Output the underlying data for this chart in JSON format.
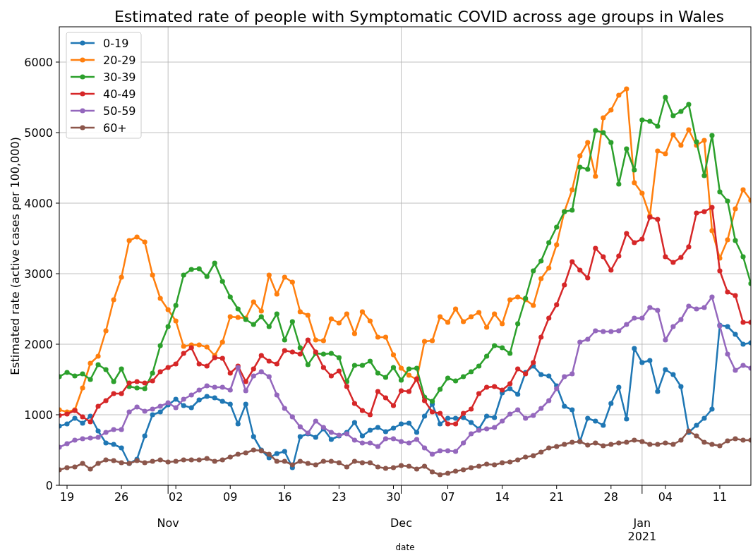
{
  "chart_data": {
    "type": "line",
    "title": "Estimated rate of people with Symptomatic COVID across age groups in Wales",
    "xlabel": "date",
    "ylabel": "Estimated rate (active cases per 100,000)",
    "x": [
      "2020-10-18",
      "2020-10-19",
      "2020-10-20",
      "2020-10-21",
      "2020-10-22",
      "2020-10-23",
      "2020-10-24",
      "2020-10-25",
      "2020-10-26",
      "2020-10-27",
      "2020-10-28",
      "2020-10-29",
      "2020-10-30",
      "2020-10-31",
      "2020-11-01",
      "2020-11-02",
      "2020-11-03",
      "2020-11-04",
      "2020-11-05",
      "2020-11-06",
      "2020-11-07",
      "2020-11-08",
      "2020-11-09",
      "2020-11-10",
      "2020-11-11",
      "2020-11-12",
      "2020-11-13",
      "2020-11-14",
      "2020-11-15",
      "2020-11-16",
      "2020-11-17",
      "2020-11-18",
      "2020-11-19",
      "2020-11-20",
      "2020-11-21",
      "2020-11-22",
      "2020-11-23",
      "2020-11-24",
      "2020-11-25",
      "2020-11-26",
      "2020-11-27",
      "2020-11-28",
      "2020-11-29",
      "2020-11-30",
      "2020-12-01",
      "2020-12-02",
      "2020-12-03",
      "2020-12-04",
      "2020-12-05",
      "2020-12-06",
      "2020-12-07",
      "2020-12-08",
      "2020-12-09",
      "2020-12-10",
      "2020-12-11",
      "2020-12-12",
      "2020-12-13",
      "2020-12-14",
      "2020-12-15",
      "2020-12-16",
      "2020-12-17",
      "2020-12-18",
      "2020-12-19",
      "2020-12-20",
      "2020-12-21",
      "2020-12-22",
      "2020-12-23",
      "2020-12-24",
      "2020-12-25",
      "2020-12-26",
      "2020-12-27",
      "2020-12-28",
      "2020-12-29",
      "2020-12-30",
      "2020-12-31",
      "2021-01-01",
      "2021-01-02",
      "2021-01-03",
      "2021-01-04",
      "2021-01-05",
      "2021-01-06",
      "2021-01-07",
      "2021-01-08",
      "2021-01-09",
      "2021-01-10",
      "2021-01-11",
      "2021-01-12",
      "2021-01-13",
      "2021-01-14",
      "2021-01-15"
    ],
    "series": [
      {
        "name": "0-19",
        "color": "#1f77b4",
        "values": [
          840,
          870,
          950,
          880,
          980,
          770,
          600,
          580,
          530,
          310,
          370,
          700,
          1000,
          1040,
          1140,
          1220,
          1130,
          1100,
          1210,
          1260,
          1240,
          1190,
          1150,
          870,
          1150,
          690,
          500,
          390,
          450,
          480,
          250,
          690,
          730,
          680,
          800,
          650,
          700,
          750,
          890,
          700,
          780,
          820,
          760,
          810,
          870,
          880,
          750,
          980,
          1150,
          870,
          950,
          950,
          960,
          890,
          800,
          980,
          960,
          1310,
          1370,
          1290,
          1600,
          1690,
          1570,
          1550,
          1410,
          1120,
          1070,
          620,
          950,
          910,
          850,
          1160,
          1390,
          940,
          1940,
          1740,
          1770,
          1330,
          1640,
          1570,
          1400,
          750,
          850,
          950,
          1080,
          2270,
          2250,
          2140,
          2000,
          2020
        ]
      },
      {
        "name": "20-29",
        "color": "#ff7f0e",
        "values": [
          1070,
          1040,
          1070,
          1380,
          1730,
          1830,
          2190,
          2630,
          2950,
          3470,
          3520,
          3450,
          2980,
          2650,
          2490,
          2330,
          1970,
          1990,
          1990,
          1960,
          1840,
          2030,
          2390,
          2380,
          2370,
          2600,
          2470,
          2980,
          2710,
          2950,
          2880,
          2460,
          2410,
          2060,
          2050,
          2360,
          2300,
          2430,
          2150,
          2460,
          2330,
          2100,
          2100,
          1850,
          1660,
          1560,
          1500,
          2040,
          2050,
          2390,
          2310,
          2500,
          2320,
          2390,
          2450,
          2240,
          2430,
          2290,
          2630,
          2670,
          2630,
          2550,
          2930,
          3080,
          3410,
          3880,
          4190,
          4670,
          4860,
          4380,
          5210,
          5320,
          5530,
          5620,
          4290,
          4140,
          3820,
          4740,
          4700,
          4970,
          4820,
          5040,
          4820,
          4890,
          3610,
          3220,
          3480,
          3920,
          4190,
          4040
        ]
      },
      {
        "name": "30-39",
        "color": "#2ca02c",
        "values": [
          1540,
          1600,
          1550,
          1580,
          1500,
          1710,
          1640,
          1470,
          1650,
          1400,
          1380,
          1370,
          1590,
          1980,
          2250,
          2550,
          2980,
          3060,
          3070,
          2960,
          3150,
          2890,
          2670,
          2500,
          2350,
          2280,
          2390,
          2250,
          2430,
          2060,
          2320,
          1950,
          1710,
          1870,
          1860,
          1870,
          1810,
          1470,
          1700,
          1700,
          1760,
          1590,
          1530,
          1670,
          1490,
          1650,
          1660,
          1250,
          1190,
          1360,
          1520,
          1480,
          1540,
          1610,
          1690,
          1830,
          1980,
          1950,
          1870,
          2290,
          2650,
          3040,
          3180,
          3440,
          3660,
          3880,
          3900,
          4510,
          4480,
          5030,
          5000,
          4860,
          4270,
          4770,
          4470,
          5180,
          5160,
          5090,
          5500,
          5240,
          5300,
          5400,
          4870,
          4390,
          4960,
          4160,
          4030,
          3470,
          3240,
          2860
        ]
      },
      {
        "name": "40-49",
        "color": "#d62728",
        "values": [
          990,
          1010,
          1060,
          970,
          900,
          1120,
          1200,
          1300,
          1300,
          1450,
          1470,
          1450,
          1480,
          1610,
          1670,
          1720,
          1870,
          1950,
          1720,
          1690,
          1810,
          1800,
          1590,
          1690,
          1470,
          1650,
          1840,
          1760,
          1720,
          1910,
          1890,
          1860,
          2060,
          1890,
          1670,
          1550,
          1620,
          1400,
          1160,
          1060,
          1000,
          1330,
          1240,
          1130,
          1340,
          1330,
          1510,
          1200,
          1040,
          1020,
          870,
          870,
          1020,
          1080,
          1300,
          1390,
          1400,
          1350,
          1440,
          1650,
          1580,
          1740,
          2100,
          2370,
          2560,
          2840,
          3170,
          3050,
          2940,
          3360,
          3240,
          3050,
          3250,
          3570,
          3440,
          3490,
          3800,
          3770,
          3240,
          3160,
          3230,
          3380,
          3860,
          3880,
          3940,
          3040,
          2740,
          2690,
          2310,
          2310
        ]
      },
      {
        "name": "50-59",
        "color": "#9467bd",
        "values": [
          540,
          590,
          640,
          660,
          670,
          680,
          750,
          790,
          790,
          1040,
          1110,
          1050,
          1080,
          1120,
          1170,
          1100,
          1220,
          1280,
          1350,
          1410,
          1390,
          1390,
          1350,
          1670,
          1340,
          1550,
          1610,
          1540,
          1280,
          1090,
          970,
          830,
          740,
          910,
          820,
          750,
          710,
          730,
          640,
          600,
          600,
          550,
          660,
          660,
          620,
          600,
          650,
          530,
          440,
          490,
          490,
          480,
          600,
          730,
          780,
          800,
          820,
          910,
          1010,
          1070,
          950,
          990,
          1090,
          1200,
          1370,
          1540,
          1580,
          2030,
          2070,
          2190,
          2180,
          2180,
          2190,
          2280,
          2370,
          2370,
          2520,
          2480,
          2060,
          2250,
          2350,
          2540,
          2500,
          2520,
          2670,
          2260,
          1860,
          1630,
          1700,
          1660
        ]
      },
      {
        "name": "60+",
        "color": "#8c564b",
        "values": [
          220,
          250,
          260,
          310,
          230,
          310,
          360,
          350,
          320,
          310,
          350,
          320,
          340,
          360,
          330,
          340,
          360,
          360,
          360,
          380,
          340,
          360,
          400,
          440,
          460,
          500,
          490,
          440,
          340,
          340,
          290,
          340,
          310,
          290,
          340,
          340,
          320,
          260,
          340,
          320,
          320,
          260,
          240,
          250,
          280,
          270,
          230,
          270,
          190,
          150,
          170,
          200,
          220,
          250,
          270,
          300,
          290,
          320,
          330,
          360,
          400,
          420,
          470,
          530,
          550,
          580,
          610,
          620,
          570,
          600,
          560,
          580,
          600,
          610,
          640,
          620,
          580,
          580,
          600,
          580,
          640,
          770,
          700,
          610,
          580,
          560,
          630,
          660,
          640,
          640
        ]
      }
    ],
    "xlim": [
      "2020-10-18",
      "2021-01-15"
    ],
    "xticks": [
      {
        "value": "2020-10-19",
        "label": "19"
      },
      {
        "value": "2020-10-26",
        "label": "26"
      },
      {
        "value": "2020-11-01",
        "label": null
      },
      {
        "value": "2020-11-02",
        "label": "02"
      },
      {
        "value": "2020-11-09",
        "label": "09"
      },
      {
        "value": "2020-11-16",
        "label": "16"
      },
      {
        "value": "2020-11-23",
        "label": "23"
      },
      {
        "value": "2020-11-30",
        "label": "30"
      },
      {
        "value": "2020-12-01",
        "label": null
      },
      {
        "value": "2020-12-07",
        "label": "07"
      },
      {
        "value": "2020-12-14",
        "label": "14"
      },
      {
        "value": "2020-12-21",
        "label": "21"
      },
      {
        "value": "2020-12-28",
        "label": "28"
      },
      {
        "value": "2021-01-01",
        "label": null
      },
      {
        "value": "2021-01-04",
        "label": "04"
      },
      {
        "value": "2021-01-11",
        "label": "11"
      }
    ],
    "ylim": [
      0,
      6500
    ],
    "yticks": [
      0,
      1000,
      2000,
      3000,
      4000,
      5000,
      6000
    ],
    "annotations": [
      "Nov",
      "Dec",
      "Jan\n2021"
    ],
    "grid": true,
    "legend": "top left",
    "marker": "circle",
    "line_style": "solid"
  }
}
